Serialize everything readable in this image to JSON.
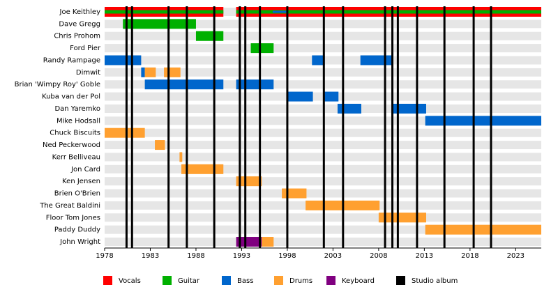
{
  "chart_data": {
    "type": "timeline",
    "xlim": [
      1978,
      2025.8
    ],
    "xticks": [
      1978,
      1983,
      1988,
      1993,
      1998,
      2003,
      2008,
      2013,
      2018,
      2023
    ],
    "roles": [
      {
        "name": "Vocals",
        "color": "#ff0000"
      },
      {
        "name": "Guitar",
        "color": "#00b000"
      },
      {
        "name": "Bass",
        "color": "#0066cc"
      },
      {
        "name": "Drums",
        "color": "#ffa030"
      },
      {
        "name": "Keyboard",
        "color": "#800080"
      },
      {
        "name": "Studio album",
        "color": "#000000"
      }
    ],
    "albums": [
      1980.4,
      1981.0,
      1985.0,
      1987.0,
      1990.0,
      1992.8,
      1993.4,
      1995.0,
      1998.0,
      2002.0,
      2004.1,
      2008.7,
      2009.5,
      2010.1,
      2012.2,
      2015.2,
      2018.4,
      2020.3
    ],
    "members": [
      {
        "name": "Joe Keithley",
        "periods": [
          {
            "role": "Vocals",
            "start": 1978,
            "end": 1991.0
          },
          {
            "role": "Guitar",
            "start": 1978,
            "end": 1991.0
          },
          {
            "role": "Vocals",
            "start": 1992.4,
            "end": 2025.8
          },
          {
            "role": "Guitar",
            "start": 1992.4,
            "end": 2025.8
          },
          {
            "role": "Bass",
            "start": 1996.4,
            "end": 1998.1
          }
        ]
      },
      {
        "name": "Dave Gregg",
        "periods": [
          {
            "role": "Guitar",
            "start": 1980.0,
            "end": 1988.0
          }
        ]
      },
      {
        "name": "Chris Prohom",
        "periods": [
          {
            "role": "Guitar",
            "start": 1988.0,
            "end": 1991.0
          }
        ]
      },
      {
        "name": "Ford Pier",
        "periods": [
          {
            "role": "Guitar",
            "start": 1994.0,
            "end": 1996.5
          }
        ]
      },
      {
        "name": "Randy Rampage",
        "periods": [
          {
            "role": "Bass",
            "start": 1978,
            "end": 1982.0
          },
          {
            "role": "Bass",
            "start": 2000.7,
            "end": 2002.1
          },
          {
            "role": "Bass",
            "start": 2006.0,
            "end": 2009.5
          }
        ]
      },
      {
        "name": "Dimwit",
        "periods": [
          {
            "role": "Bass",
            "start": 1982.0,
            "end": 1982.4
          },
          {
            "role": "Drums",
            "start": 1982.4,
            "end": 1983.6
          },
          {
            "role": "Drums",
            "start": 1984.5,
            "end": 1986.3
          }
        ]
      },
      {
        "name": "Brian 'Wimpy Roy' Goble",
        "periods": [
          {
            "role": "Bass",
            "start": 1982.4,
            "end": 1991.0
          },
          {
            "role": "Bass",
            "start": 1992.4,
            "end": 1996.5
          }
        ]
      },
      {
        "name": "Kuba van der Pol",
        "periods": [
          {
            "role": "Bass",
            "start": 1998.0,
            "end": 2000.8
          },
          {
            "role": "Bass",
            "start": 2002.0,
            "end": 2003.6
          }
        ]
      },
      {
        "name": "Dan Yaremko",
        "periods": [
          {
            "role": "Bass",
            "start": 2003.5,
            "end": 2006.1
          },
          {
            "role": "Bass",
            "start": 2009.5,
            "end": 2013.2
          }
        ]
      },
      {
        "name": "Mike Hodsall",
        "periods": [
          {
            "role": "Bass",
            "start": 2013.1,
            "end": 2025.8
          }
        ]
      },
      {
        "name": "Chuck Biscuits",
        "periods": [
          {
            "role": "Drums",
            "start": 1978,
            "end": 1982.4
          }
        ]
      },
      {
        "name": "Ned Peckerwood",
        "periods": [
          {
            "role": "Drums",
            "start": 1983.5,
            "end": 1984.6
          }
        ]
      },
      {
        "name": "Kerr Belliveau",
        "periods": [
          {
            "role": "Drums",
            "start": 1986.2,
            "end": 1986.5
          }
        ]
      },
      {
        "name": "Jon Card",
        "periods": [
          {
            "role": "Drums",
            "start": 1986.4,
            "end": 1991.0
          }
        ]
      },
      {
        "name": "Ken Jensen",
        "periods": [
          {
            "role": "Drums",
            "start": 1992.4,
            "end": 1995.2
          }
        ]
      },
      {
        "name": "Brien O'Brien",
        "periods": [
          {
            "role": "Drums",
            "start": 1997.4,
            "end": 2000.1
          }
        ]
      },
      {
        "name": "The Great Baldini",
        "periods": [
          {
            "role": "Drums",
            "start": 2000.0,
            "end": 2008.1
          }
        ]
      },
      {
        "name": "Floor Tom Jones",
        "periods": [
          {
            "role": "Drums",
            "start": 2008.0,
            "end": 2013.2
          }
        ]
      },
      {
        "name": "Paddy Duddy",
        "periods": [
          {
            "role": "Drums",
            "start": 2013.1,
            "end": 2025.8
          }
        ]
      },
      {
        "name": "John Wright",
        "periods": [
          {
            "role": "Keyboard",
            "start": 1992.4,
            "end": 1995.2
          },
          {
            "role": "Drums",
            "start": 1995.2,
            "end": 1996.5
          }
        ]
      }
    ]
  }
}
